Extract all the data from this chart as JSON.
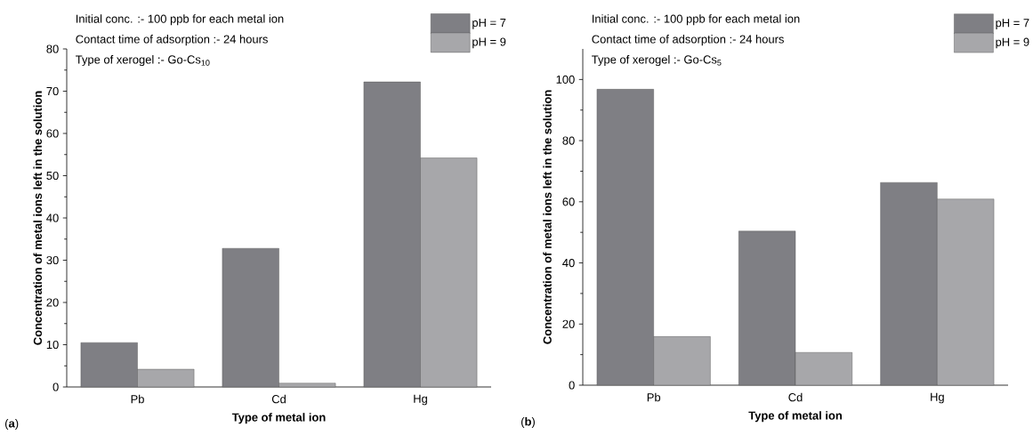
{
  "chart_data": [
    {
      "type": "bar",
      "categories": [
        "Pb",
        "Cd",
        "Hg"
      ],
      "xlabel": "Type of metal ion",
      "ylabel": "Concentration of metal ions left in the solution",
      "ylim": [
        0,
        80
      ],
      "yticks": [
        0,
        10,
        20,
        30,
        40,
        50,
        60,
        70,
        80
      ],
      "legend": "top right",
      "annotations": [
        "Initial conc. :- 100 ppb for each metal ion",
        "Contact time of adsorption :- 24 hours",
        "Type of xerogel :- Go-Cs$_{10}$",
        "(**a**)"
      ],
      "series": [
        {
          "name": "pH = 7",
          "color": "#7f7f84",
          "values": [
            10.5,
            32.8,
            72.2
          ]
        },
        {
          "name": "pH = 9",
          "color": "#a7a7aa",
          "values": [
            4.2,
            0.9,
            54.2
          ]
        }
      ]
    },
    {
      "type": "bar",
      "categories": [
        "Pb",
        "Cd",
        "Hg"
      ],
      "xlabel": "Type of metal ion",
      "ylabel": "Concentration of metal ions left in the solution",
      "ylim": [
        0,
        110
      ],
      "yticks": [
        0,
        20,
        40,
        60,
        80,
        100
      ],
      "legend": "top right",
      "annotations": [
        "Initial conc. :- 100 ppb for each metal ion",
        "Contact time of adsorption :- 24 hours",
        "Type of xerogel :- Go-Cs$_{5}$",
        "(**b**)"
      ],
      "series": [
        {
          "name": "pH = 7",
          "color": "#7f7f84",
          "values": [
            96.8,
            50.4,
            66.3
          ]
        },
        {
          "name": "pH = 9",
          "color": "#a7a7aa",
          "values": [
            15.9,
            10.7,
            60.9
          ]
        }
      ]
    }
  ]
}
